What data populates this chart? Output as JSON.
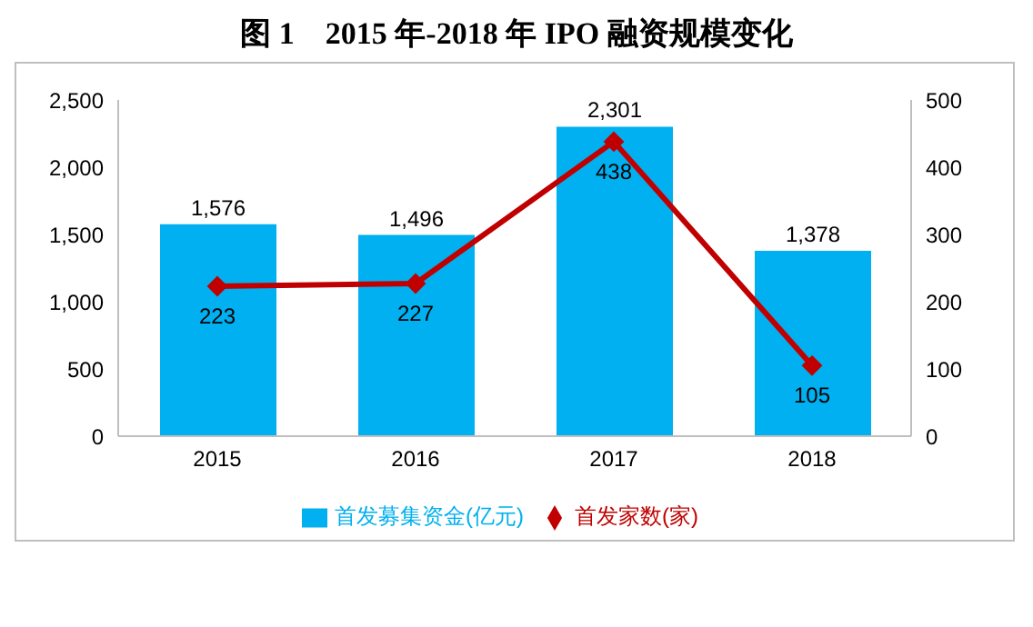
{
  "chart_data": {
    "type": "bar",
    "title": "图 1　2015 年-2018 年 IPO 融资规模变化",
    "categories": [
      "2015",
      "2016",
      "2017",
      "2018"
    ],
    "series": [
      {
        "name": "首发募集资金(亿元)",
        "color": "#00b0f0",
        "values": [
          1576,
          1496,
          2301,
          1378
        ],
        "value_labels": [
          "1,576",
          "1,496",
          "2,301",
          "1,378"
        ]
      },
      {
        "name": "首发家数(家)",
        "type": "line",
        "axis": "y2",
        "color": "#c00000",
        "values": [
          223,
          227,
          438,
          105
        ],
        "value_labels": [
          "223",
          "227",
          "438",
          "105"
        ],
        "marker": "diamond"
      }
    ],
    "ylim": [
      0,
      2500
    ],
    "yticks": [
      {
        "value": 0,
        "label": "0"
      },
      {
        "value": 500,
        "label": "500"
      },
      {
        "value": 1000,
        "label": "1,000"
      },
      {
        "value": 1500,
        "label": "1,500"
      },
      {
        "value": 2000,
        "label": "2,000"
      },
      {
        "value": 2500,
        "label": "2,500"
      }
    ],
    "y2lim": [
      0,
      500
    ],
    "y2ticks": [
      0,
      100,
      200,
      300,
      400,
      500
    ],
    "grid": false,
    "legend": "bottom"
  }
}
